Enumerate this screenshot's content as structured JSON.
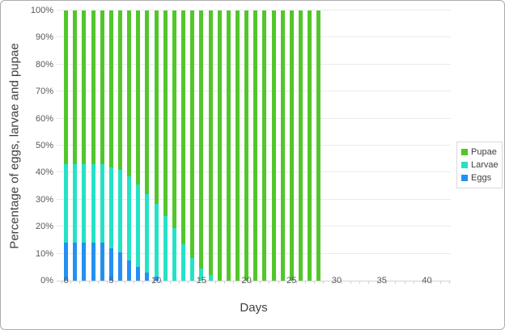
{
  "chart_data": {
    "type": "bar",
    "variant": "100-percent-stacked-column",
    "title": "",
    "xlabel": "Days",
    "ylabel": "Percentage of eggs, larvae and pupae",
    "x": [
      0,
      1,
      2,
      3,
      4,
      5,
      6,
      7,
      8,
      9,
      10,
      11,
      12,
      13,
      14,
      15,
      16,
      17,
      18,
      19,
      20,
      21,
      22,
      23,
      24,
      25,
      26,
      27,
      28
    ],
    "series": [
      {
        "name": "Pupae",
        "color": "#52c62b",
        "values": [
          57,
          57,
          57,
          57,
          57,
          58,
          59,
          61.5,
          64.5,
          68,
          71.5,
          76,
          80.5,
          86.5,
          91.5,
          95.5,
          98,
          100,
          100,
          100,
          100,
          100,
          100,
          100,
          100,
          100,
          100,
          100,
          100
        ]
      },
      {
        "name": "Larvae",
        "color": "#25e2c5",
        "values": [
          29,
          29,
          29,
          29,
          29,
          30,
          30.5,
          31,
          30.5,
          29,
          27,
          24,
          19.5,
          13.5,
          8.5,
          4.5,
          2,
          0,
          0,
          0,
          0,
          0,
          0,
          0,
          0,
          0,
          0,
          0,
          0
        ]
      },
      {
        "name": "Eggs",
        "color": "#2590f2",
        "values": [
          14,
          14,
          14,
          14,
          14,
          12,
          10.5,
          7.5,
          5,
          3,
          1.5,
          0,
          0,
          0,
          0,
          0,
          0,
          0,
          0,
          0,
          0,
          0,
          0,
          0,
          0,
          0,
          0,
          0,
          0
        ]
      }
    ],
    "y_tick_labels": [
      "0%",
      "10%",
      "20%",
      "30%",
      "40%",
      "50%",
      "60%",
      "70%",
      "80%",
      "90%",
      "100%"
    ],
    "x_tick_labels": [
      0,
      5,
      10,
      15,
      20,
      25,
      30,
      35,
      40
    ],
    "ylim": [
      0,
      100
    ],
    "x_axis_slots": 43.7,
    "x_boundary_ticks": 44,
    "bar_center_offset": 1.05,
    "grid": "horizontal",
    "legend_position": "right",
    "legend_order": [
      "Pupae",
      "Larvae",
      "Eggs"
    ],
    "colors": {
      "grid": "#ebebeb",
      "axis_line": "#d3d3d3",
      "tick_text": "#595959",
      "title_text": "#3f3f3f",
      "frame_border": "#acacac",
      "legend_border": "#d9d9d9",
      "background": "#ffffff"
    }
  }
}
